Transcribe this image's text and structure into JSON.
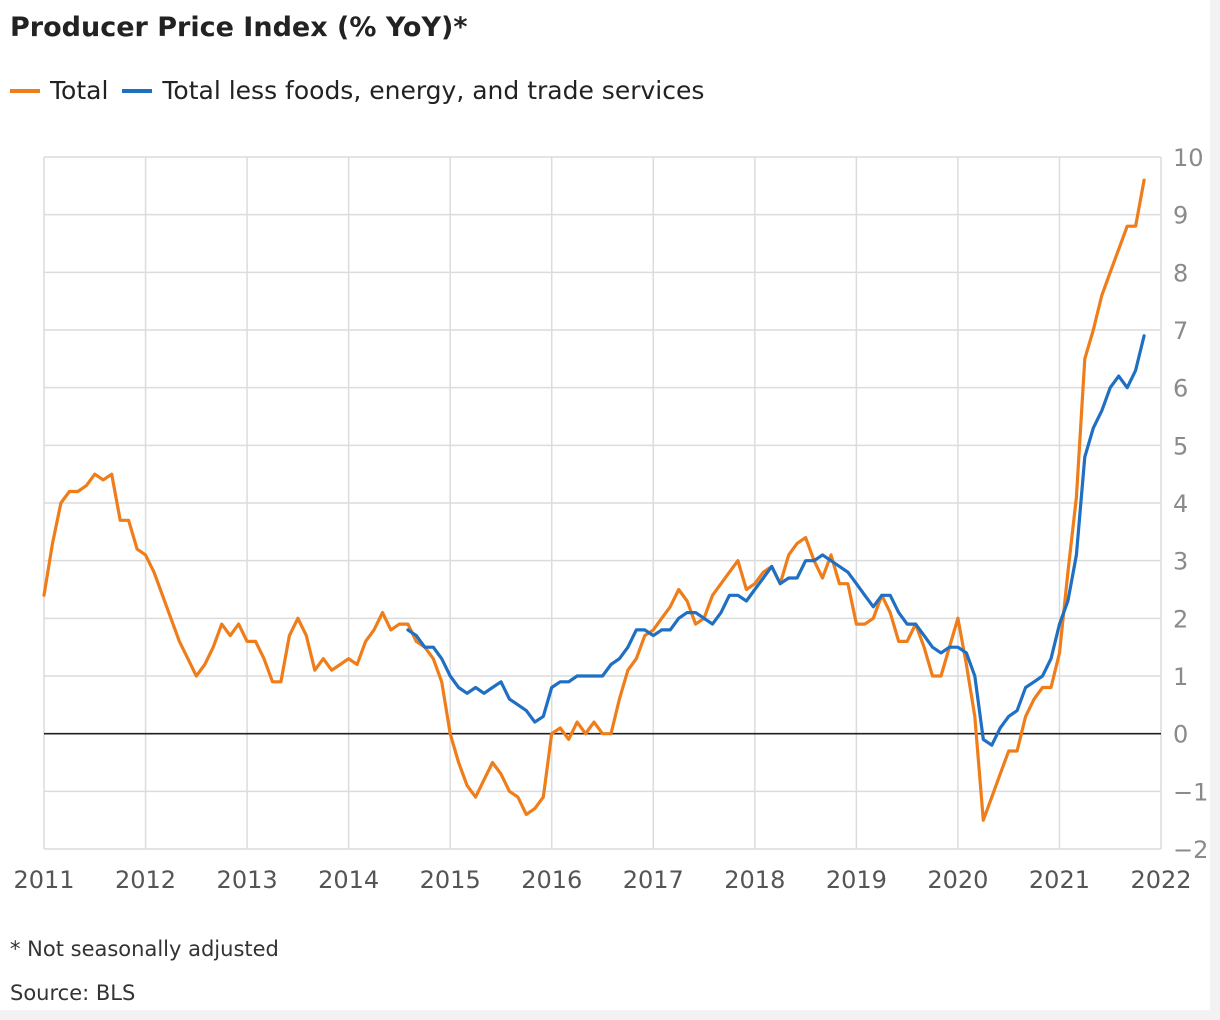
{
  "chart_data": {
    "type": "line",
    "title": "Producer Price Index (% YoY)*",
    "xlabel": "",
    "ylabel": "",
    "xlim": [
      2011,
      2022
    ],
    "ylim": [
      -2,
      10
    ],
    "x_ticks": [
      "2011",
      "2012",
      "2013",
      "2014",
      "2015",
      "2016",
      "2017",
      "2018",
      "2019",
      "2020",
      "2021",
      "2022"
    ],
    "y_ticks": [
      "10",
      "9",
      "8",
      "7",
      "6",
      "5",
      "4",
      "3",
      "2",
      "1",
      "0",
      "−1",
      "−2"
    ],
    "grid": true,
    "legend_position": "top-left",
    "zero_line": true,
    "series": [
      {
        "name": "Total",
        "color": "#ef7d1a",
        "x": [
          "2011-01",
          "2011-02",
          "2011-03",
          "2011-04",
          "2011-05",
          "2011-06",
          "2011-07",
          "2011-08",
          "2011-09",
          "2011-10",
          "2011-11",
          "2011-12",
          "2012-01",
          "2012-02",
          "2012-03",
          "2012-04",
          "2012-05",
          "2012-06",
          "2012-07",
          "2012-08",
          "2012-09",
          "2012-10",
          "2012-11",
          "2012-12",
          "2013-01",
          "2013-02",
          "2013-03",
          "2013-04",
          "2013-05",
          "2013-06",
          "2013-07",
          "2013-08",
          "2013-09",
          "2013-10",
          "2013-11",
          "2013-12",
          "2014-01",
          "2014-02",
          "2014-03",
          "2014-04",
          "2014-05",
          "2014-06",
          "2014-07",
          "2014-08",
          "2014-09",
          "2014-10",
          "2014-11",
          "2014-12",
          "2015-01",
          "2015-02",
          "2015-03",
          "2015-04",
          "2015-05",
          "2015-06",
          "2015-07",
          "2015-08",
          "2015-09",
          "2015-10",
          "2015-11",
          "2015-12",
          "2016-01",
          "2016-02",
          "2016-03",
          "2016-04",
          "2016-05",
          "2016-06",
          "2016-07",
          "2016-08",
          "2016-09",
          "2016-10",
          "2016-11",
          "2016-12",
          "2017-01",
          "2017-02",
          "2017-03",
          "2017-04",
          "2017-05",
          "2017-06",
          "2017-07",
          "2017-08",
          "2017-09",
          "2017-10",
          "2017-11",
          "2017-12",
          "2018-01",
          "2018-02",
          "2018-03",
          "2018-04",
          "2018-05",
          "2018-06",
          "2018-07",
          "2018-08",
          "2018-09",
          "2018-10",
          "2018-11",
          "2018-12",
          "2019-01",
          "2019-02",
          "2019-03",
          "2019-04",
          "2019-05",
          "2019-06",
          "2019-07",
          "2019-08",
          "2019-09",
          "2019-10",
          "2019-11",
          "2019-12",
          "2020-01",
          "2020-02",
          "2020-03",
          "2020-04",
          "2020-05",
          "2020-06",
          "2020-07",
          "2020-08",
          "2020-09",
          "2020-10",
          "2020-11",
          "2020-12",
          "2021-01",
          "2021-02",
          "2021-03",
          "2021-04",
          "2021-05",
          "2021-06",
          "2021-07",
          "2021-08",
          "2021-09",
          "2021-10",
          "2021-11"
        ],
        "values": [
          2.4,
          3.3,
          4.0,
          4.2,
          4.2,
          4.3,
          4.5,
          4.4,
          4.5,
          3.7,
          3.7,
          3.2,
          3.1,
          2.8,
          2.4,
          2.0,
          1.6,
          1.3,
          1.0,
          1.2,
          1.5,
          1.9,
          1.7,
          1.9,
          1.6,
          1.6,
          1.3,
          0.9,
          0.9,
          1.7,
          2.0,
          1.7,
          1.1,
          1.3,
          1.1,
          1.2,
          1.3,
          1.2,
          1.6,
          1.8,
          2.1,
          1.8,
          1.9,
          1.9,
          1.6,
          1.5,
          1.3,
          0.9,
          0.0,
          -0.5,
          -0.9,
          -1.1,
          -0.8,
          -0.5,
          -0.7,
          -1.0,
          -1.1,
          -1.4,
          -1.3,
          -1.1,
          0.0,
          0.1,
          -0.1,
          0.2,
          0.0,
          0.2,
          0.0,
          0.0,
          0.6,
          1.1,
          1.3,
          1.7,
          1.8,
          2.0,
          2.2,
          2.5,
          2.3,
          1.9,
          2.0,
          2.4,
          2.6,
          2.8,
          3.0,
          2.5,
          2.6,
          2.8,
          2.9,
          2.6,
          3.1,
          3.3,
          3.4,
          3.0,
          2.7,
          3.1,
          2.6,
          2.6,
          1.9,
          1.9,
          2.0,
          2.4,
          2.1,
          1.6,
          1.6,
          1.9,
          1.5,
          1.0,
          1.0,
          1.5,
          2.0,
          1.2,
          0.3,
          -1.5,
          -1.1,
          -0.7,
          -0.3,
          -0.3,
          0.3,
          0.6,
          0.8,
          0.8,
          1.4,
          2.8,
          4.1,
          6.5,
          7.0,
          7.6,
          8.0,
          8.4,
          8.8,
          8.8,
          9.6
        ]
      },
      {
        "name": "Total less foods, energy, and trade services",
        "color": "#1f6fc2",
        "x": [
          "2014-08",
          "2014-09",
          "2014-10",
          "2014-11",
          "2014-12",
          "2015-01",
          "2015-02",
          "2015-03",
          "2015-04",
          "2015-05",
          "2015-06",
          "2015-07",
          "2015-08",
          "2015-09",
          "2015-10",
          "2015-11",
          "2015-12",
          "2016-01",
          "2016-02",
          "2016-03",
          "2016-04",
          "2016-05",
          "2016-06",
          "2016-07",
          "2016-08",
          "2016-09",
          "2016-10",
          "2016-11",
          "2016-12",
          "2017-01",
          "2017-02",
          "2017-03",
          "2017-04",
          "2017-05",
          "2017-06",
          "2017-07",
          "2017-08",
          "2017-09",
          "2017-10",
          "2017-11",
          "2017-12",
          "2018-01",
          "2018-02",
          "2018-03",
          "2018-04",
          "2018-05",
          "2018-06",
          "2018-07",
          "2018-08",
          "2018-09",
          "2018-10",
          "2018-11",
          "2018-12",
          "2019-01",
          "2019-02",
          "2019-03",
          "2019-04",
          "2019-05",
          "2019-06",
          "2019-07",
          "2019-08",
          "2019-09",
          "2019-10",
          "2019-11",
          "2019-12",
          "2020-01",
          "2020-02",
          "2020-03",
          "2020-04",
          "2020-05",
          "2020-06",
          "2020-07",
          "2020-08",
          "2020-09",
          "2020-10",
          "2020-11",
          "2020-12",
          "2021-01",
          "2021-02",
          "2021-03",
          "2021-04",
          "2021-05",
          "2021-06",
          "2021-07",
          "2021-08",
          "2021-09",
          "2021-10",
          "2021-11"
        ],
        "values": [
          1.8,
          1.7,
          1.5,
          1.5,
          1.3,
          1.0,
          0.8,
          0.7,
          0.8,
          0.7,
          0.8,
          0.9,
          0.6,
          0.5,
          0.4,
          0.2,
          0.3,
          0.8,
          0.9,
          0.9,
          1.0,
          1.0,
          1.0,
          1.0,
          1.2,
          1.3,
          1.5,
          1.8,
          1.8,
          1.7,
          1.8,
          1.8,
          2.0,
          2.1,
          2.1,
          2.0,
          1.9,
          2.1,
          2.4,
          2.4,
          2.3,
          2.5,
          2.7,
          2.9,
          2.6,
          2.7,
          2.7,
          3.0,
          3.0,
          3.1,
          3.0,
          2.9,
          2.8,
          2.6,
          2.4,
          2.2,
          2.4,
          2.4,
          2.1,
          1.9,
          1.9,
          1.7,
          1.5,
          1.4,
          1.5,
          1.5,
          1.4,
          1.0,
          -0.1,
          -0.2,
          0.1,
          0.3,
          0.4,
          0.8,
          0.9,
          1.0,
          1.3,
          1.9,
          2.3,
          3.1,
          4.8,
          5.3,
          5.6,
          6.0,
          6.2,
          6.0,
          6.3,
          6.9
        ]
      }
    ]
  },
  "footnote": "* Not seasonally adjusted",
  "source": "Source: BLS"
}
